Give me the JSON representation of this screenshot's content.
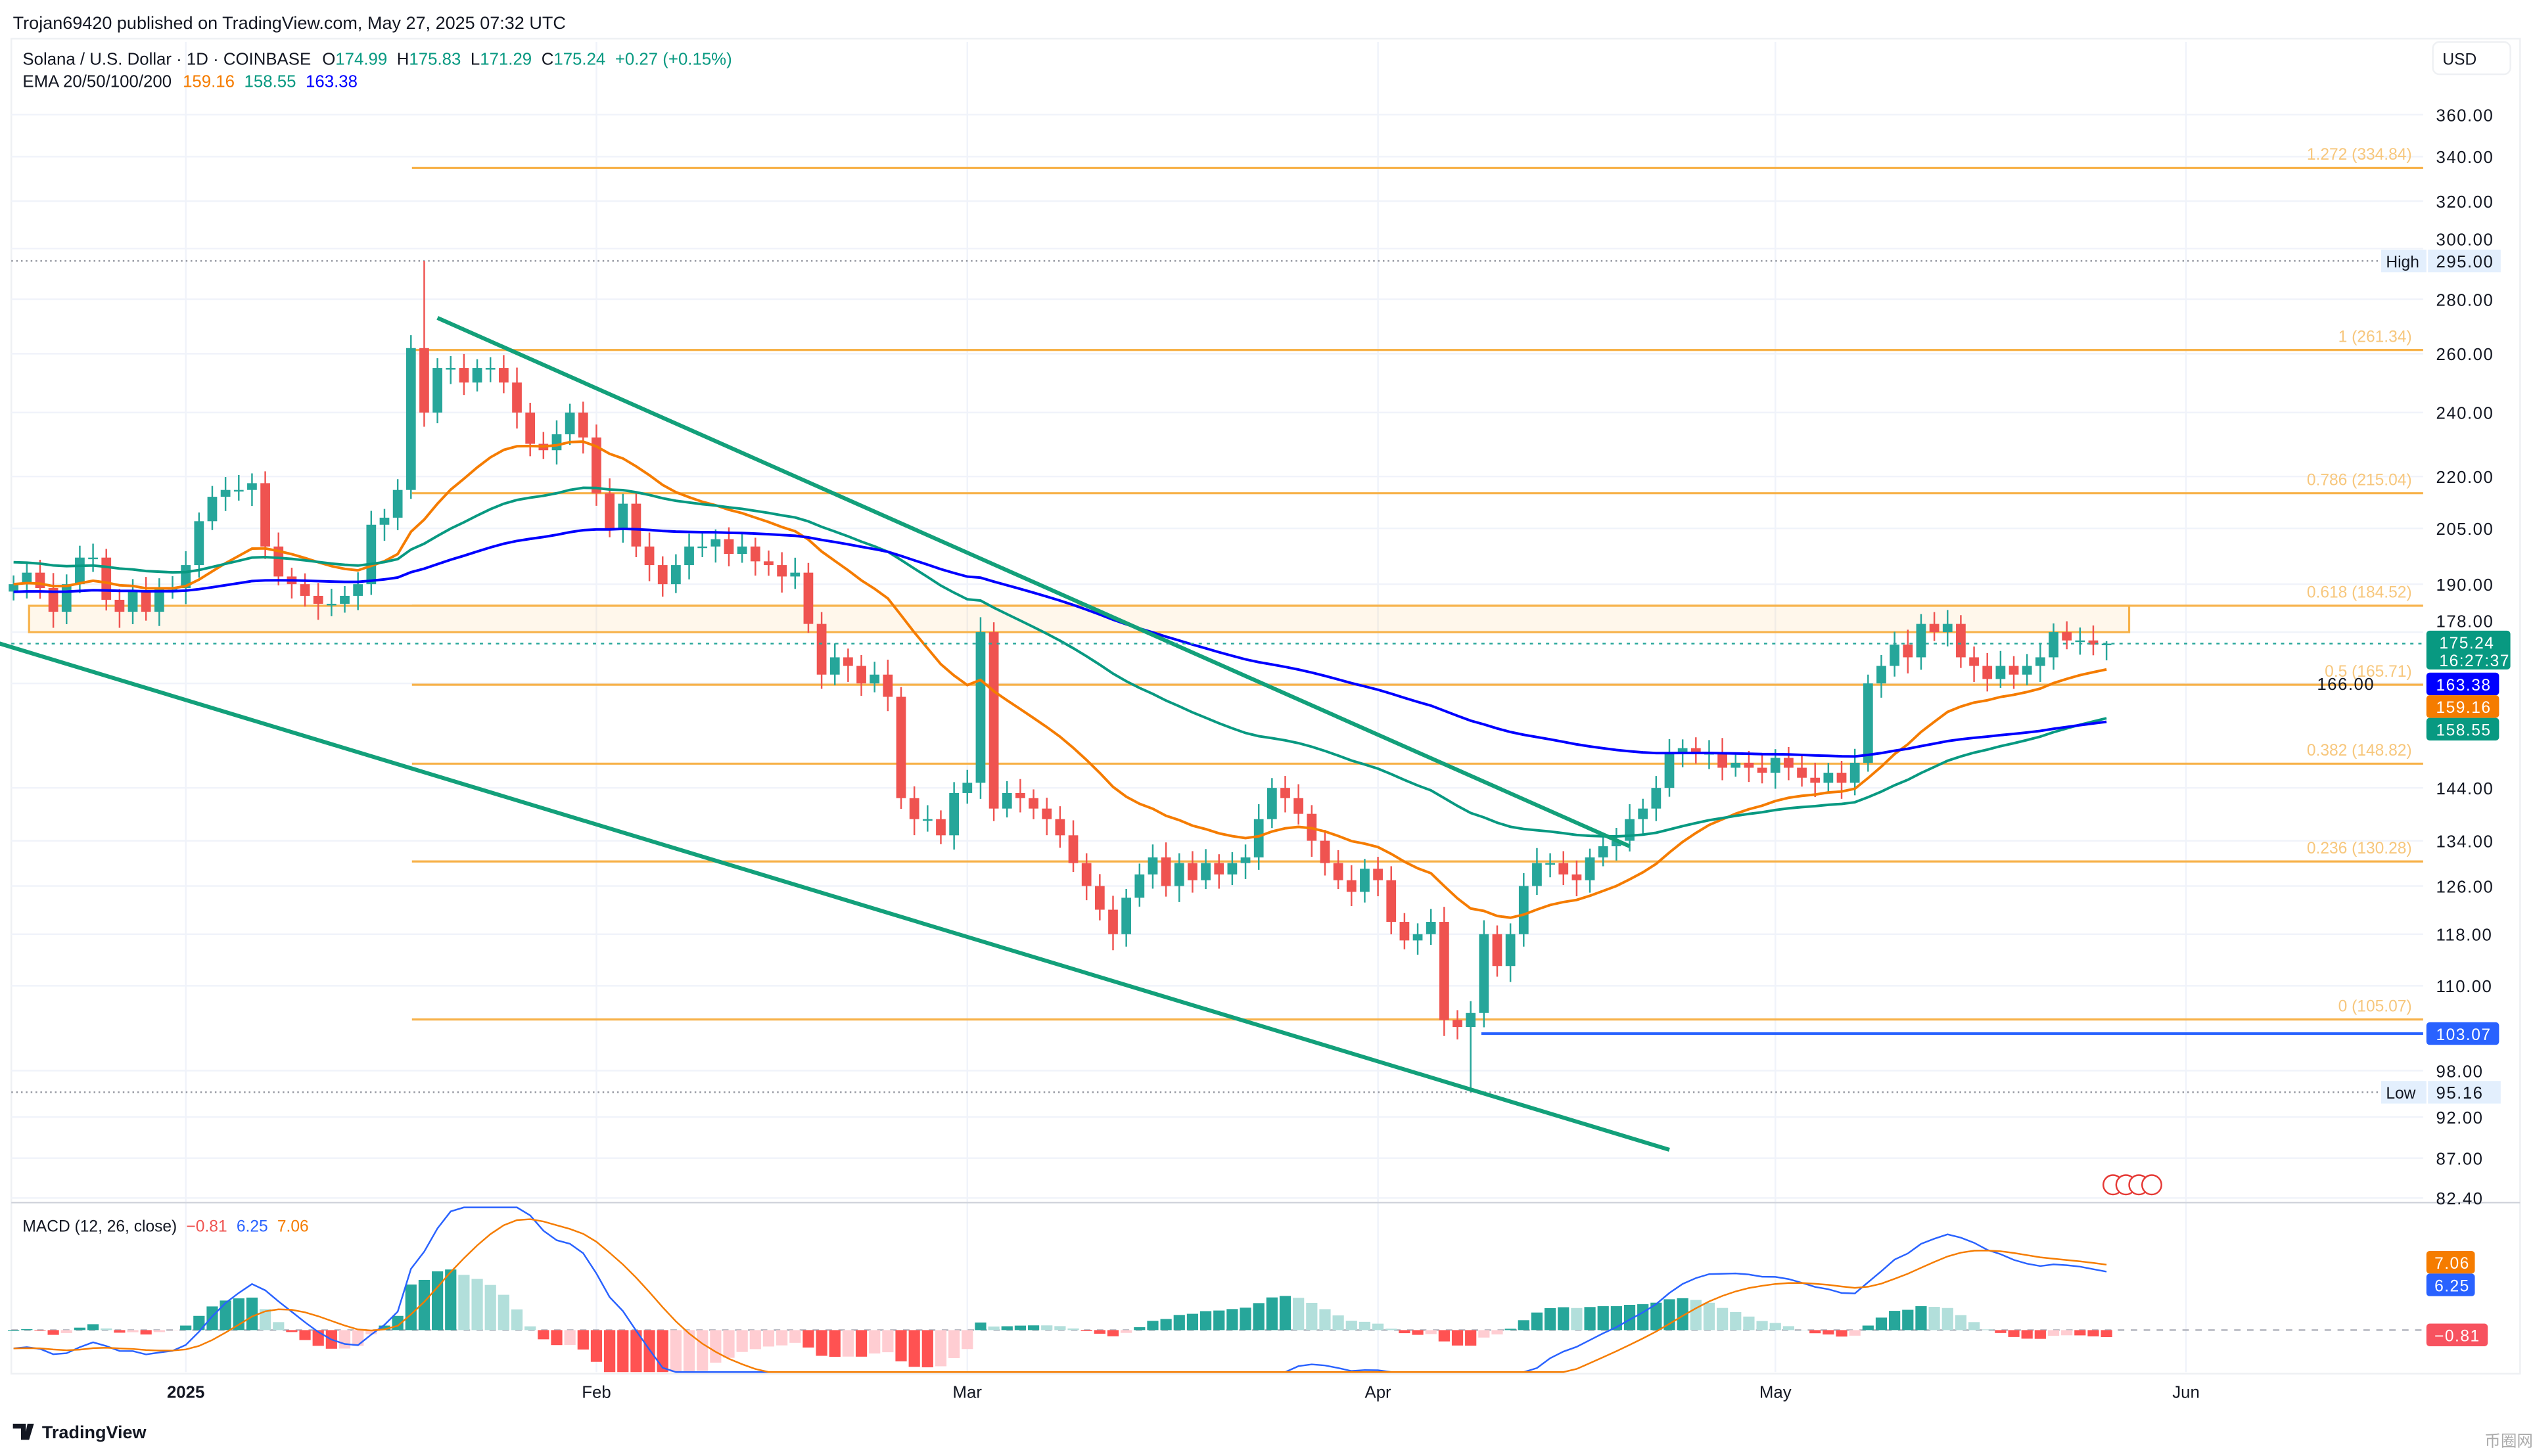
{
  "header": {
    "published": "Trojan69420 published on TradingView.com, May 27, 2025 07:32 UTC"
  },
  "legend": {
    "symbol": "Solana / U.S. Dollar · 1D · COINBASE",
    "o_label": "O",
    "o": "174.99",
    "h_label": "H",
    "h": "175.83",
    "l_label": "L",
    "l": "171.29",
    "c_label": "C",
    "c": "175.24",
    "change": "+0.27 (+0.15%)",
    "ema_label": "EMA 20/50/100/200",
    "ema20": "159.16",
    "ema50": "158.55",
    "ema100": "163.38"
  },
  "currency": "USD",
  "colors": {
    "up": "#26a69a",
    "down": "#ef5350",
    "ema20": "#f57c00",
    "ema50": "#089981",
    "ema100": "#0000ff",
    "fib": "#f7b24a",
    "trend": "#13a07a"
  },
  "chart_data": {
    "type": "candlestick",
    "title": "Solana / U.S. Dollar · 1D · COINBASE",
    "scale": "log",
    "ylim": [
      82.4,
      360
    ],
    "start_date": "2024-12-19",
    "y_ticks": [
      "360.00",
      "340.00",
      "320.00",
      "300.00",
      "280.00",
      "260.00",
      "240.00",
      "220.00",
      "205.00",
      "190.00",
      "178.00",
      "166.00",
      "144.00",
      "134.00",
      "126.00",
      "118.00",
      "110.00",
      "98.00",
      "92.00",
      "87.00",
      "82.40"
    ],
    "y_tick_values": [
      360,
      340,
      320,
      300,
      280,
      260,
      240,
      220,
      205,
      190,
      178,
      166,
      144,
      134,
      126,
      118,
      110,
      98,
      92,
      87,
      82.4
    ],
    "x_ticks": [
      {
        "label": "2025",
        "day": 13
      },
      {
        "label": "Feb",
        "day": 44
      },
      {
        "label": "Mar",
        "day": 72
      },
      {
        "label": "Apr",
        "day": 103
      },
      {
        "label": "May",
        "day": 133
      },
      {
        "label": "Jun",
        "day": 164
      }
    ],
    "closes": [
      190,
      193,
      189,
      183,
      190,
      197,
      197,
      186,
      183,
      188,
      183,
      189,
      189,
      195,
      207,
      214,
      216,
      216,
      218,
      200,
      192,
      190,
      187,
      185,
      185,
      187,
      190,
      206,
      208,
      216,
      262,
      240,
      255,
      255,
      250,
      255,
      255,
      250,
      240,
      230,
      228,
      233,
      240,
      232,
      215,
      205,
      212,
      200,
      195,
      190,
      195,
      200,
      200,
      202,
      198,
      200,
      196,
      195,
      192,
      193,
      180,
      168,
      172,
      170,
      166,
      168,
      163,
      142,
      138,
      138,
      135,
      143,
      145,
      178,
      140,
      143,
      142,
      140,
      138,
      135,
      130,
      126,
      122,
      118,
      124,
      128,
      131,
      126,
      130,
      127,
      130,
      128,
      130,
      131,
      138,
      144,
      142,
      139,
      134,
      130,
      127,
      125,
      129,
      127,
      120,
      117,
      118,
      120,
      105,
      104,
      106,
      118,
      113,
      118,
      126,
      130,
      130,
      128,
      127,
      131,
      133,
      134,
      138,
      140,
      144,
      151,
      152,
      151,
      151,
      148,
      149,
      148,
      147,
      150,
      148,
      146,
      145,
      147,
      145,
      149,
      166,
      170,
      175,
      172,
      180,
      178,
      180,
      172,
      170,
      167,
      170,
      168,
      170,
      172,
      178,
      176,
      176,
      175,
      175.24
    ],
    "extremes": {
      "high": {
        "label": "High",
        "value": "295.00",
        "v": 295,
        "day": 31
      },
      "low": {
        "label": "Low",
        "value": "95.16",
        "v": 95.16,
        "day": 110
      }
    },
    "last_price": {
      "value": "175.24",
      "countdown": "16:27:37",
      "v": 175.24
    },
    "ema_badges": [
      {
        "value": "163.38",
        "v": 163.38,
        "color": "#0000ff"
      },
      {
        "value": "159.16",
        "v": 159.16,
        "color": "#f57c00"
      },
      {
        "value": "158.55",
        "v": 158.55,
        "color": "#089981"
      }
    ],
    "support_line": {
      "value": "103.07",
      "v": 103.07
    },
    "fib_levels": [
      {
        "label": "1.272 (334.84)",
        "v": 334.84
      },
      {
        "label": "1 (261.34)",
        "v": 261.34
      },
      {
        "label": "0.786 (215.04)",
        "v": 215.04
      },
      {
        "label": "0.618 (184.52)",
        "v": 184.52
      },
      {
        "label": "0.5 (165.71)",
        "v": 165.71
      },
      {
        "label": "0.382 (148.82)",
        "v": 148.82
      },
      {
        "label": "0.236 (130.28)",
        "v": 130.28
      },
      {
        "label": "0 (105.07)",
        "v": 105.07
      }
    ],
    "zone": [
      178,
      184.5
    ],
    "trendlines": [
      {
        "from": [
          32,
          273
        ],
        "to": [
          122,
          133
        ]
      },
      {
        "from": [
          0,
          176
        ],
        "to": [
          125,
          88
        ]
      }
    ],
    "macd": {
      "label": "MACD (12, 26, close)",
      "hist": "−0.81",
      "macd": "6.25",
      "signal": "7.06",
      "badge_signal": "7.06",
      "badge_macd": "6.25",
      "badge_hist": "−0.81"
    }
  },
  "footer": {
    "brand": "TradingView"
  },
  "watermark": "币圈网"
}
